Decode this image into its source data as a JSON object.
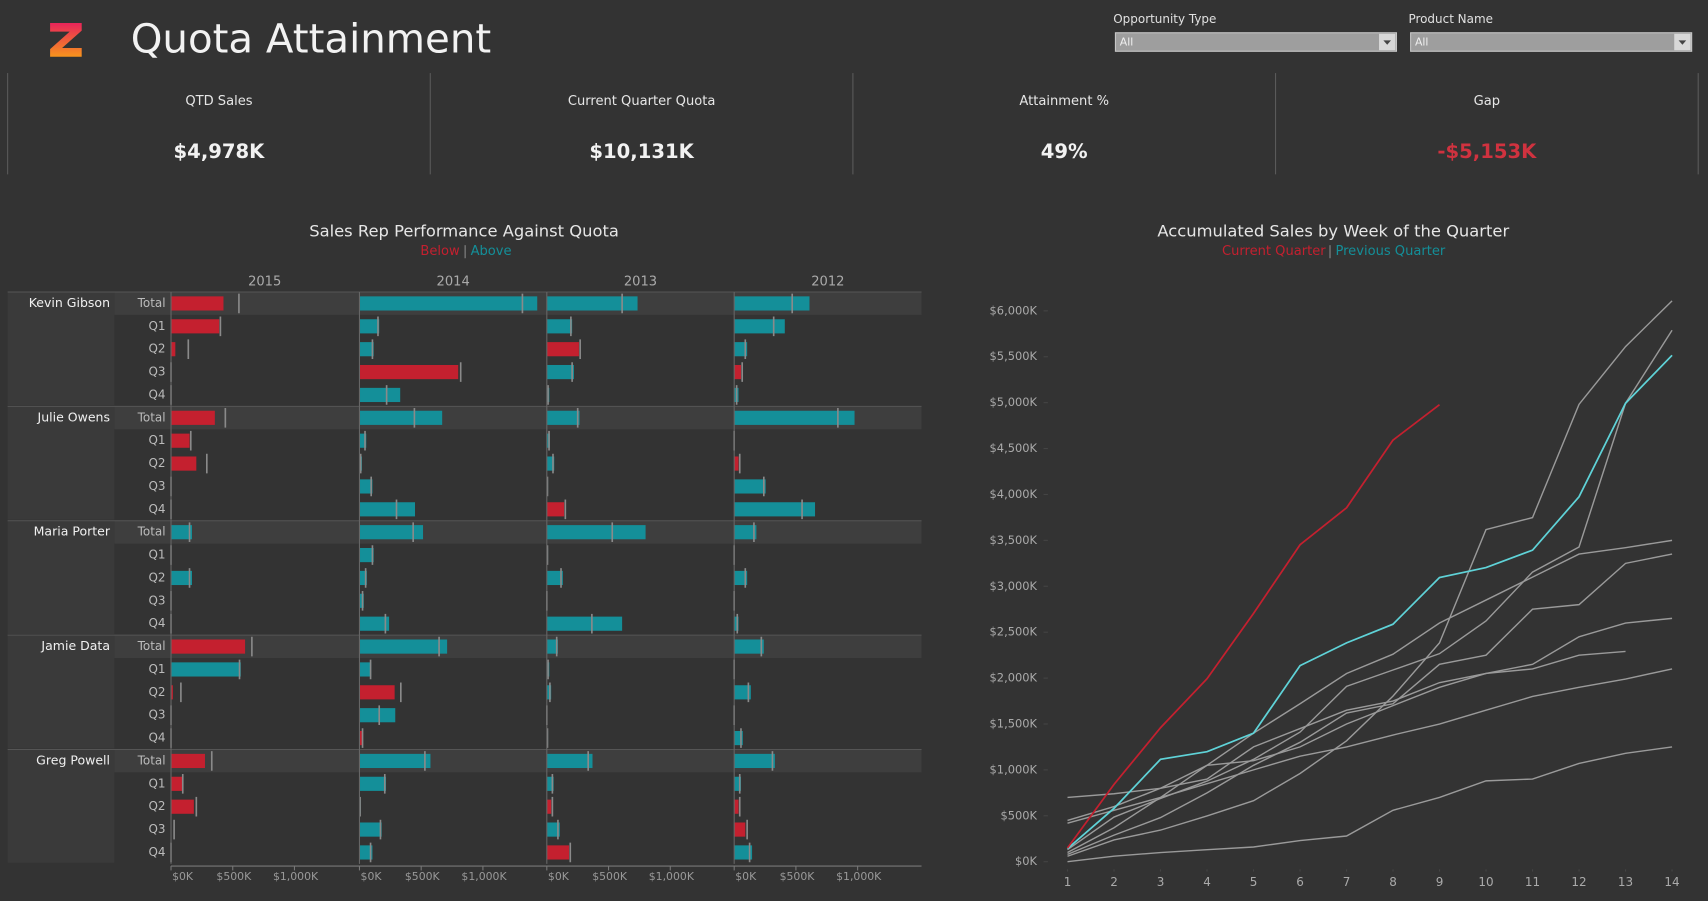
{
  "header": {
    "title": "Quota Attainment"
  },
  "filters": [
    {
      "label": "Opportunity Type",
      "value": "All"
    },
    {
      "label": "Product Name",
      "value": "All"
    }
  ],
  "kpis": [
    {
      "label": "QTD Sales",
      "value": "$4,978K"
    },
    {
      "label": "Current Quarter Quota",
      "value": "$10,131K"
    },
    {
      "label": "Attainment %",
      "value": "49%"
    },
    {
      "label": "Gap",
      "value": "-$5,153K",
      "color": "#d0323f"
    }
  ],
  "chart_data": [
    {
      "type": "bullet",
      "title": "Sales Rep Performance Against Quota",
      "legend": [
        "Below",
        "Above"
      ],
      "colors": {
        "below": "#c4202f",
        "above": "#148f99"
      },
      "columns": [
        "2015",
        "2014",
        "2013",
        "2012"
      ],
      "rows": [
        "Total",
        "Q1",
        "Q2",
        "Q3",
        "Q4"
      ],
      "xlim": [
        0,
        1500
      ],
      "xticks": [
        {
          "value": 0,
          "label": "$0K"
        },
        {
          "value": 500,
          "label": "$500K"
        },
        {
          "value": 1000,
          "label": "$1,000K"
        }
      ],
      "reps": [
        {
          "name": "Kevin Gibson",
          "sales": [
            [
              425,
              1440,
              735,
              610
            ],
            [
              390,
              160,
              205,
              410
            ],
            [
              35,
              115,
              260,
              105
            ],
            [
              0,
              800,
              220,
              55
            ],
            [
              0,
              330,
              20,
              35
            ]
          ],
          "quota": [
            [
              550,
              1320,
              610,
              470
            ],
            [
              400,
              150,
              195,
              320
            ],
            [
              140,
              105,
              270,
              90
            ],
            [
              0,
              820,
              205,
              65
            ],
            [
              0,
              220,
              10,
              20
            ]
          ]
        },
        {
          "name": "Julie Owens",
          "sales": [
            [
              355,
              670,
              265,
              975
            ],
            [
              150,
              55,
              25,
              0
            ],
            [
              205,
              20,
              60,
              35
            ],
            [
              0,
              105,
              10,
              255
            ],
            [
              0,
              450,
              140,
              655
            ]
          ],
          "quota": [
            [
              440,
              445,
              250,
              840
            ],
            [
              160,
              45,
              18,
              0
            ],
            [
              290,
              10,
              50,
              45
            ],
            [
              0,
              95,
              5,
              240
            ],
            [
              0,
              300,
              150,
              550
            ]
          ]
        },
        {
          "name": "Maria Porter",
          "sales": [
            [
              170,
              515,
              800,
              180
            ],
            [
              0,
              115,
              10,
              0
            ],
            [
              170,
              60,
              130,
              105
            ],
            [
              0,
              35,
              0,
              0
            ],
            [
              0,
              240,
              610,
              35
            ]
          ],
          "quota": [
            [
              150,
              435,
              530,
              160
            ],
            [
              0,
              105,
              5,
              0
            ],
            [
              150,
              50,
              115,
              90
            ],
            [
              0,
              25,
              0,
              0
            ],
            [
              0,
              210,
              365,
              25
            ]
          ]
        },
        {
          "name": "Jamie Data",
          "sales": [
            [
              600,
              710,
              90,
              240
            ],
            [
              565,
              95,
              20,
              0
            ],
            [
              15,
              285,
              35,
              135
            ],
            [
              0,
              290,
              0,
              0
            ],
            [
              0,
              20,
              10,
              70
            ]
          ],
          "quota": [
            [
              655,
              645,
              80,
              220
            ],
            [
              555,
              90,
              10,
              0
            ],
            [
              80,
              335,
              25,
              115
            ],
            [
              0,
              160,
              0,
              0
            ],
            [
              0,
              25,
              5,
              55
            ]
          ]
        },
        {
          "name": "Greg Powell",
          "sales": [
            [
              275,
              575,
              370,
              330
            ],
            [
              90,
              215,
              55,
              55
            ],
            [
              185,
              10,
              35,
              35
            ],
            [
              0,
              180,
              105,
              90
            ],
            [
              0,
              105,
              180,
              145
            ]
          ],
          "quota": [
            [
              330,
              530,
              335,
              310
            ],
            [
              95,
              205,
              45,
              45
            ],
            [
              205,
              5,
              45,
              45
            ],
            [
              25,
              170,
              90,
              105
            ],
            [
              0,
              90,
              190,
              125
            ]
          ]
        }
      ]
    },
    {
      "type": "line",
      "title": "Accumulated Sales by Week of the Quarter",
      "x": [
        1,
        2,
        3,
        4,
        5,
        6,
        7,
        8,
        9,
        10,
        11,
        12,
        13,
        14
      ],
      "xlim": [
        1,
        14
      ],
      "ylim": [
        0,
        6300
      ],
      "yticks": [
        {
          "value": 0,
          "label": "$0K"
        },
        {
          "value": 500,
          "label": "$500K"
        },
        {
          "value": 1000,
          "label": "$1,000K"
        },
        {
          "value": 1500,
          "label": "$1,500K"
        },
        {
          "value": 2000,
          "label": "$2,000K"
        },
        {
          "value": 2500,
          "label": "$2,500K"
        },
        {
          "value": 3000,
          "label": "$3,000K"
        },
        {
          "value": 3500,
          "label": "$3,500K"
        },
        {
          "value": 4000,
          "label": "$4,000K"
        },
        {
          "value": 4500,
          "label": "$4,500K"
        },
        {
          "value": 5000,
          "label": "$5,000K"
        },
        {
          "value": 5500,
          "label": "$5,500K"
        },
        {
          "value": 6000,
          "label": "$6,000K"
        }
      ],
      "series": [
        {
          "color": "#9a9a9a",
          "values": [
            59,
            237,
            344,
            498,
            664,
            961,
            1317,
            1803,
            2384,
            3618,
            3748,
            4982,
            5611,
            6109
          ]
        },
        {
          "color": "#9a9a9a",
          "values": [
            130,
            486,
            688,
            878,
            1115,
            1412,
            1910,
            2088,
            2266,
            2622,
            3155,
            3428,
            4994,
            5789
          ]
        },
        {
          "color": "#9a9a9a",
          "values": [
            100,
            370,
            700,
            1050,
            1400,
            1720,
            2050,
            2260,
            2600,
            2850,
            3100,
            3350,
            3420,
            3500
          ]
        },
        {
          "color": "#9a9a9a",
          "values": [
            80,
            290,
            480,
            750,
            1050,
            1300,
            1620,
            1720,
            2150,
            2250,
            2750,
            2800,
            3250,
            3350
          ]
        },
        {
          "color": "#9a9a9a",
          "values": [
            700,
            740,
            800,
            900,
            1250,
            1450,
            1650,
            1750,
            1950,
            2050,
            2150,
            2450,
            2600,
            2650
          ]
        },
        {
          "color": "#9a9a9a",
          "values": [
            450,
            600,
            800,
            1050,
            1100,
            1250,
            1500,
            1700,
            1900,
            2050,
            2100,
            2250,
            2290,
            null
          ]
        },
        {
          "color": "#9a9a9a",
          "values": [
            420,
            560,
            700,
            850,
            1000,
            1150,
            1250,
            1380,
            1500,
            1650,
            1800,
            1900,
            1990,
            2100
          ]
        },
        {
          "color": "#9a9a9a",
          "values": [
            0,
            60,
            100,
            130,
            160,
            230,
            280,
            560,
            700,
            880,
            900,
            1070,
            1180,
            1250
          ]
        },
        {
          "name": "Previous Quarter",
          "color": "#5fd3d8",
          "legend_color": "#148f99",
          "values": [
            142,
            581,
            1115,
            1198,
            1400,
            2135,
            2384,
            2586,
            3096,
            3203,
            3393,
            3974,
            4994,
            5516
          ]
        },
        {
          "name": "Current Quarter",
          "color": "#c4202f",
          "values": [
            150,
            842,
            1459,
            1993,
            2705,
            3452,
            3855,
            4591,
            4978,
            null,
            null,
            null,
            null,
            null
          ]
        }
      ]
    }
  ]
}
